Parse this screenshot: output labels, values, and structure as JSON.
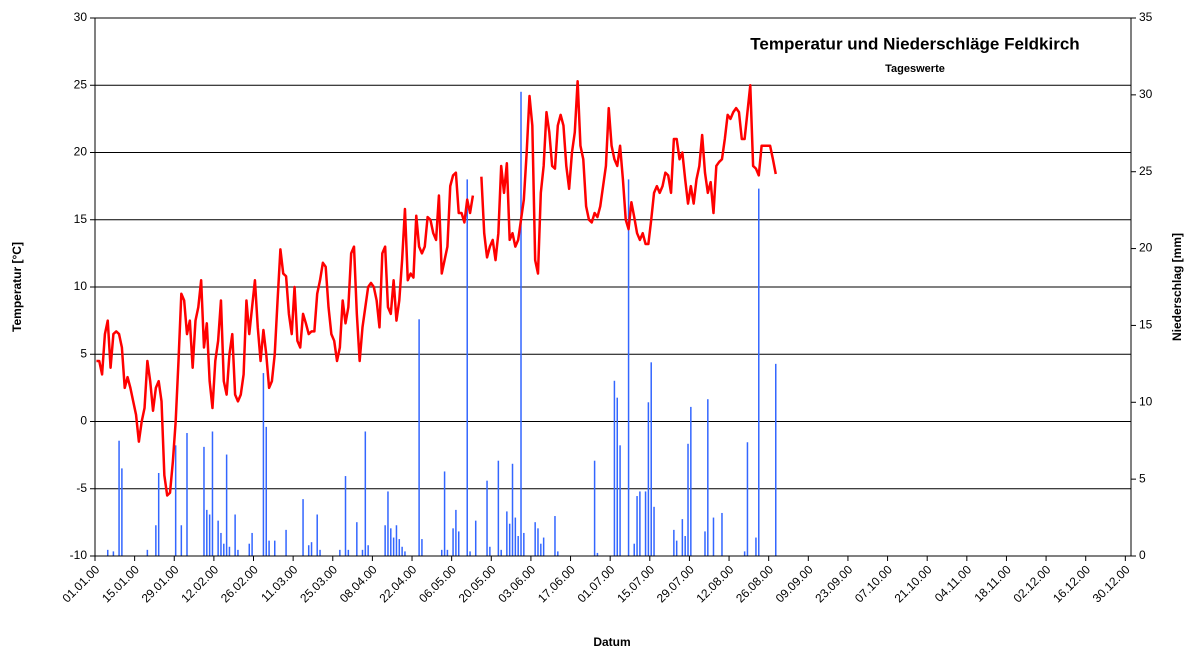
{
  "chart_data": {
    "type": "combo",
    "title": "Temperatur und Niederschläge Feldkirch",
    "subtitle": "Tageswerte",
    "xlabel": "Datum",
    "ylabel": "Temperatur [°C]",
    "y2label": "Niederschlag [mm]",
    "ylim": [
      -10,
      30
    ],
    "yticks": [
      -10,
      -5,
      0,
      5,
      10,
      15,
      20,
      25,
      30
    ],
    "y2lim": [
      0,
      35
    ],
    "y2ticks": [
      0,
      5,
      10,
      15,
      20,
      25,
      30,
      35
    ],
    "grid": true,
    "categories": [
      "01.01.00",
      null,
      null,
      null,
      null,
      null,
      null,
      null,
      null,
      null,
      null,
      null,
      null,
      null,
      "15.01.00",
      null,
      null,
      null,
      null,
      null,
      null,
      null,
      null,
      null,
      null,
      null,
      null,
      null,
      "29.01.00",
      null,
      null,
      null,
      null,
      null,
      null,
      null,
      null,
      null,
      null,
      null,
      null,
      null,
      "12.02.00",
      null,
      null,
      null,
      null,
      null,
      null,
      null,
      null,
      null,
      null,
      null,
      null,
      null,
      "26.02.00",
      null,
      null,
      null,
      null,
      null,
      null,
      null,
      null,
      null,
      null,
      null,
      null,
      null,
      "11.03.00",
      null,
      null,
      null,
      null,
      null,
      null,
      null,
      null,
      null,
      null,
      null,
      null,
      null,
      "25.03.00",
      null,
      null,
      null,
      null,
      null,
      null,
      null,
      null,
      null,
      null,
      null,
      null,
      null,
      "08.04.00",
      null,
      null,
      null,
      null,
      null,
      null,
      null,
      null,
      null,
      null,
      null,
      null,
      null,
      "22.04.00",
      null,
      null,
      null,
      null,
      null,
      null,
      null,
      null,
      null,
      null,
      null,
      null,
      null,
      "06.05.00",
      null,
      null,
      null,
      null,
      null,
      null,
      null,
      null,
      null,
      null,
      null,
      null,
      null,
      "20.05.00",
      null,
      null,
      null,
      null,
      null,
      null,
      null,
      null,
      null,
      null,
      null,
      null,
      null,
      "03.06.00",
      null,
      null,
      null,
      null,
      null,
      null,
      null,
      null,
      null,
      null,
      null,
      null,
      null,
      "17.06.00",
      null,
      null,
      null,
      null,
      null,
      null,
      null,
      null,
      null,
      null,
      null,
      null,
      null,
      "01.07.00",
      null,
      null,
      null,
      null,
      null,
      null,
      null,
      null,
      null,
      null,
      null,
      null,
      null,
      "15.07.00",
      null,
      null,
      null,
      null,
      null,
      null,
      null,
      null,
      null,
      null,
      null,
      null,
      null,
      "29.07.00",
      null,
      null,
      null,
      null,
      null,
      null,
      null,
      null,
      null,
      null,
      null,
      null,
      null,
      "12.08.00",
      null,
      null,
      null,
      null,
      null,
      null,
      null,
      null,
      null,
      null,
      null,
      null,
      null,
      "26.08.00",
      null,
      null,
      null,
      null,
      null,
      null,
      null,
      null,
      null,
      null,
      null,
      null,
      null,
      "09.09.00",
      null,
      null,
      null,
      null,
      null,
      null,
      null,
      null,
      null,
      null,
      null,
      null,
      null,
      "23.09.00",
      null,
      null,
      null,
      null,
      null,
      null,
      null,
      null,
      null,
      null,
      null,
      null,
      null,
      "07.10.00",
      null,
      null,
      null,
      null,
      null,
      null,
      null,
      null,
      null,
      null,
      null,
      null,
      null,
      "21.10.00",
      null,
      null,
      null,
      null,
      null,
      null,
      null,
      null,
      null,
      null,
      null,
      null,
      null,
      "04.11.00",
      null,
      null,
      null,
      null,
      null,
      null,
      null,
      null,
      null,
      null,
      null,
      null,
      null,
      "18.11.00",
      null,
      null,
      null,
      null,
      null,
      null,
      null,
      null,
      null,
      null,
      null,
      null,
      null,
      "02.12.00",
      null,
      null,
      null,
      null,
      null,
      null,
      null,
      null,
      null,
      null,
      null,
      null,
      null,
      "16.12.00",
      null,
      null,
      null,
      null,
      null,
      null,
      null,
      null,
      null,
      null,
      null,
      null,
      null,
      "30.12.00",
      null
    ],
    "series": [
      {
        "type": "bar",
        "axis": "y2",
        "color": "#3366ff",
        "values": [
          0,
          0,
          0,
          0,
          0.4,
          0,
          0.3,
          0,
          7.5,
          5.7,
          0,
          0,
          0,
          0,
          0,
          0,
          0,
          0,
          0.4,
          0,
          0,
          2,
          5.4,
          0,
          0,
          0,
          0,
          0,
          7.2,
          0,
          2,
          0,
          8,
          0,
          0,
          0,
          0,
          0,
          7.1,
          3,
          2.7,
          8.1,
          0,
          2.3,
          1.5,
          0.8,
          6.6,
          0.6,
          0,
          2.7,
          0.4,
          0,
          0,
          0,
          0.8,
          1.5,
          0,
          0,
          0,
          11.9,
          8.4,
          1,
          0,
          1,
          0,
          0,
          0,
          1.7,
          0,
          0,
          0,
          0,
          0,
          3.7,
          0,
          0.7,
          0.9,
          0,
          2.7,
          0.4,
          0,
          0,
          0,
          0,
          0,
          0,
          0.4,
          0,
          5.2,
          0.4,
          0,
          0,
          2.2,
          0,
          0.4,
          8.1,
          0.7,
          0,
          0,
          0,
          0,
          0,
          2,
          4.2,
          1.8,
          1.2,
          2,
          1.1,
          0.6,
          0.3,
          0,
          0,
          0,
          0,
          15.4,
          1.1,
          0,
          0,
          0,
          0,
          0,
          0,
          0.4,
          5.5,
          0.4,
          0,
          1.8,
          3,
          1.6,
          0,
          0,
          24.5,
          0.3,
          0,
          2.3,
          0,
          0,
          0,
          4.9,
          0.6,
          0,
          0,
          6.2,
          0.4,
          0,
          2.9,
          2.1,
          6,
          2.5,
          1.3,
          30.2,
          1.5,
          0,
          0,
          0,
          2.2,
          1.8,
          0.8,
          1.2,
          0,
          0,
          0,
          2.6,
          0.3,
          0,
          0,
          0,
          0,
          0,
          0,
          0,
          0,
          0,
          0,
          0,
          0,
          6.2,
          0.2,
          0,
          0,
          0,
          0,
          0,
          11.4,
          10.3,
          7.2,
          0,
          0,
          24.5,
          0,
          0.8,
          3.9,
          4.2,
          0,
          4.2,
          10,
          12.6,
          3.2,
          0,
          0,
          0,
          0,
          0,
          0,
          1.7,
          1,
          0,
          2.4,
          1.3,
          7.3,
          9.7,
          0,
          0,
          0,
          0,
          1.6,
          10.2,
          0,
          2.5,
          0,
          0,
          2.8,
          0,
          0,
          0,
          0,
          0,
          0,
          0,
          0.3,
          7.4,
          0,
          0,
          1.2,
          23.9,
          0,
          0,
          0,
          0,
          0,
          12.5,
          null,
          null,
          null,
          null,
          null,
          null,
          null,
          null,
          null,
          null,
          null,
          null,
          null,
          null,
          null,
          null,
          null,
          null,
          null,
          null,
          null,
          null,
          null,
          null,
          null,
          null,
          null,
          null,
          null,
          null,
          null,
          null,
          null,
          null,
          null,
          null,
          null,
          null,
          null,
          null,
          null,
          null,
          null,
          null,
          null,
          null,
          null,
          null,
          null,
          null,
          null,
          null,
          null,
          null,
          null,
          null,
          null,
          null,
          null,
          null,
          null,
          null,
          null,
          null,
          null,
          null,
          null,
          null,
          null,
          null,
          null,
          null,
          null,
          null,
          null,
          null,
          null,
          null,
          null,
          null,
          null,
          null,
          null,
          null,
          null,
          null,
          null,
          null,
          null,
          null,
          null,
          null,
          null,
          null,
          null,
          null,
          null,
          null,
          null,
          null,
          null,
          null,
          null,
          null,
          null,
          null,
          null,
          null,
          null,
          null,
          null,
          null,
          null,
          null,
          null,
          null,
          null,
          null,
          null,
          null,
          null,
          null,
          null,
          null,
          null
        ]
      },
      {
        "type": "line",
        "axis": "y",
        "color": "#ff0000",
        "values": [
          4.5,
          4.5,
          3.5,
          6.5,
          7.5,
          4,
          6.5,
          6.7,
          6.5,
          5.5,
          2.5,
          3.3,
          2.5,
          1.5,
          0.5,
          -1.5,
          0,
          1,
          4.5,
          3,
          0.8,
          2.5,
          3,
          1.5,
          -4,
          -5.5,
          -5.3,
          -3,
          0,
          4.5,
          9.5,
          9,
          6.5,
          7.5,
          4,
          7.5,
          8.5,
          10.5,
          5.5,
          7.3,
          3,
          1,
          4.5,
          6,
          9,
          3,
          2,
          5,
          6.5,
          2,
          1.5,
          2,
          3.5,
          9,
          6.5,
          8.5,
          10.5,
          7,
          4.5,
          6.8,
          5,
          2.5,
          3,
          5,
          9,
          12.8,
          11,
          10.8,
          8,
          6.5,
          10,
          6,
          5.5,
          8,
          7.3,
          6.5,
          6.7,
          6.7,
          9.5,
          10.5,
          11.8,
          11.5,
          8.5,
          6.5,
          6,
          4.5,
          5.5,
          9,
          7.3,
          8.5,
          12.5,
          13,
          8,
          4.5,
          7,
          8.5,
          10,
          10.3,
          10,
          9,
          7,
          12.5,
          13,
          8.5,
          8,
          10.5,
          7.5,
          9,
          12,
          15.8,
          10.5,
          11,
          10.7,
          15.3,
          13,
          12.5,
          13,
          15.2,
          15,
          14,
          13.5,
          16.8,
          11,
          12,
          13,
          17.5,
          18.3,
          18.5,
          15.5,
          15.5,
          14.8,
          16.5,
          15.5,
          16.8,
          null,
          null,
          18.2,
          14,
          12.2,
          13,
          13.5,
          12,
          14,
          19,
          17,
          19.2,
          13.5,
          14,
          13,
          13.5,
          15,
          16.5,
          20,
          24.2,
          22,
          12,
          11,
          17,
          19,
          23,
          21.5,
          19,
          18.8,
          22,
          22.8,
          22,
          19,
          17.3,
          20,
          21.5,
          25.3,
          20.5,
          19.5,
          16,
          15,
          14.8,
          15.5,
          15.2,
          16,
          17.5,
          19,
          23.3,
          20.5,
          19.5,
          19,
          20.5,
          18,
          15,
          14.3,
          16.3,
          15.2,
          14,
          13.5,
          14,
          13.2,
          13.2,
          15,
          17,
          17.5,
          17,
          17.5,
          18.5,
          18.3,
          17,
          21,
          21,
          19.5,
          20,
          18,
          16.2,
          17.5,
          16.2,
          18,
          19,
          21.3,
          18.5,
          17,
          17.8,
          15.5,
          19,
          19.3,
          19.5,
          21,
          22.8,
          22.5,
          23,
          23.3,
          23,
          21,
          21,
          23,
          25,
          19,
          18.8,
          18.3,
          20.5,
          20.5,
          20.5,
          20.5,
          19.5,
          18.4,
          null,
          null,
          null,
          null,
          null,
          null,
          null,
          null,
          null,
          null,
          null,
          null,
          null,
          null,
          null,
          null,
          null,
          null,
          null,
          null,
          null,
          null,
          null,
          null,
          null,
          null,
          null,
          null,
          null,
          null,
          null,
          null,
          null,
          null,
          null,
          null,
          null,
          null,
          null,
          null,
          null,
          null,
          null,
          null,
          null,
          null,
          null,
          null,
          null,
          null,
          null,
          null,
          null,
          null,
          null,
          null,
          null,
          null,
          null,
          null,
          null,
          null,
          null,
          null,
          null,
          null,
          null,
          null,
          null,
          null,
          null,
          null,
          null,
          null,
          null,
          null,
          null,
          null,
          null,
          null,
          null,
          null,
          null,
          null,
          null,
          null,
          null,
          null,
          null,
          null,
          null,
          null,
          null,
          null,
          null,
          null,
          null,
          null,
          null,
          null,
          null,
          null,
          null,
          null,
          null,
          null,
          null,
          null,
          null,
          null,
          null,
          null,
          null,
          null,
          null,
          null,
          null,
          null,
          null,
          null,
          null,
          null,
          null,
          null,
          null
        ]
      }
    ]
  }
}
